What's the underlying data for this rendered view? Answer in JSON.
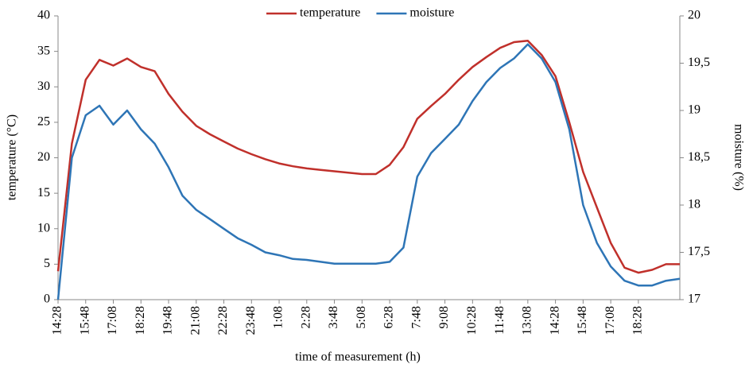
{
  "chart_data": {
    "type": "line",
    "x_label": "time of measurement (h)",
    "y_label": "temperature (°C)",
    "y2_label": "moisture (%)",
    "categories": [
      "14:28",
      null,
      "15:48",
      null,
      "17:08",
      null,
      "18:28",
      null,
      "19:48",
      null,
      "21:08",
      null,
      "22:28",
      null,
      "23:48",
      null,
      "1:08",
      null,
      "2:28",
      null,
      "3:48",
      null,
      "5:08",
      null,
      "6:28",
      null,
      "7:48",
      null,
      "9:08",
      null,
      "10:28",
      null,
      "11:48",
      null,
      "13:08",
      null,
      "14:28",
      null,
      "15:48",
      null,
      "17:08",
      null,
      "18:28",
      null,
      null,
      null
    ],
    "series": [
      {
        "name": "temperature",
        "color": "#c0302b",
        "axis": "y",
        "values": [
          4,
          22,
          31,
          33.8,
          33,
          34,
          32.8,
          32.2,
          29,
          26.5,
          24.5,
          23.3,
          22.3,
          21.3,
          20.5,
          19.8,
          19.2,
          18.8,
          18.5,
          18.3,
          18.1,
          17.9,
          17.7,
          17.7,
          19,
          21.5,
          25.5,
          27.3,
          29,
          31,
          32.8,
          34.2,
          35.5,
          36.3,
          36.5,
          34.5,
          31.5,
          25,
          18,
          13,
          8,
          4.5,
          3.8,
          4.2,
          5,
          5
        ]
      },
      {
        "name": "moisture",
        "color": "#2e75b6",
        "axis": "y2",
        "values": [
          17,
          18.5,
          18.95,
          19.05,
          18.85,
          19,
          18.8,
          18.65,
          18.4,
          18.1,
          17.95,
          17.85,
          17.75,
          17.65,
          17.58,
          17.5,
          17.47,
          17.43,
          17.42,
          17.4,
          17.38,
          17.38,
          17.38,
          17.38,
          17.4,
          17.55,
          18.3,
          18.55,
          18.7,
          18.85,
          19.1,
          19.3,
          19.45,
          19.55,
          19.7,
          19.55,
          19.3,
          18.8,
          18,
          17.6,
          17.35,
          17.2,
          17.15,
          17.15,
          17.2,
          17.22
        ]
      }
    ],
    "ylim": [
      0,
      40
    ],
    "yticks": [
      0,
      5,
      10,
      15,
      20,
      25,
      30,
      35,
      40
    ],
    "y2lim": [
      17,
      20
    ],
    "y2ticks": [
      17,
      {
        "value": 17.5,
        "label": "17,5"
      },
      18,
      {
        "value": 18.5,
        "label": "18,5"
      },
      19,
      {
        "value": 19.5,
        "label": "19,5"
      },
      20
    ],
    "legend": "top"
  }
}
